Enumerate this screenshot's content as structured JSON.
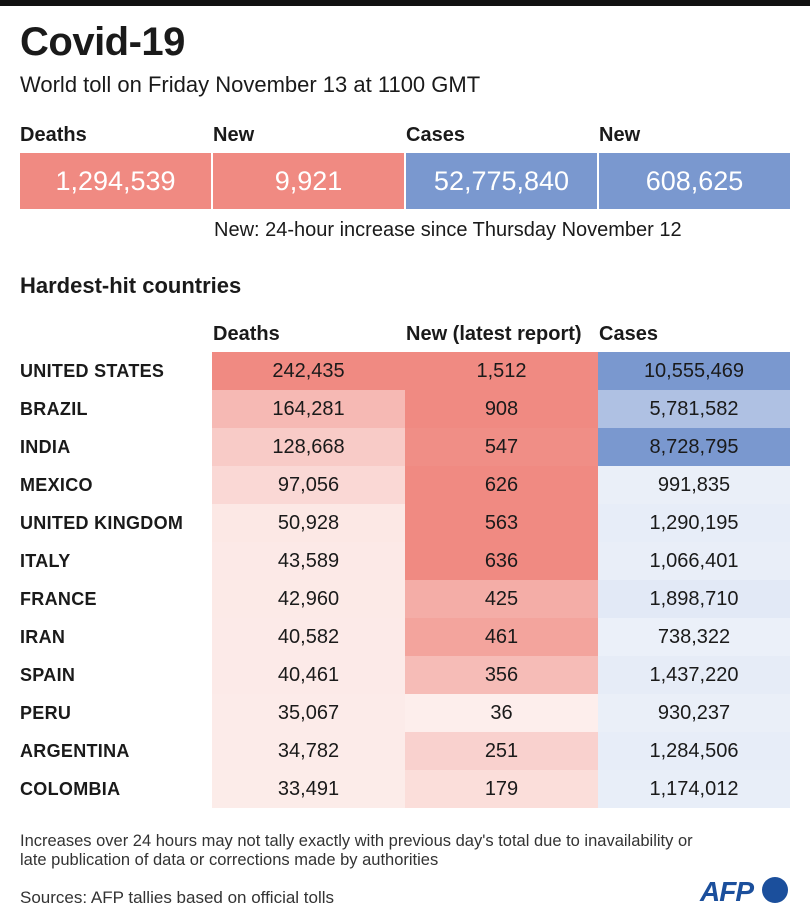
{
  "header": {
    "title": "Covid-19",
    "subtitle": "World toll on Friday November 13 at 1100 GMT"
  },
  "summary": {
    "labels": [
      "Deaths",
      "New",
      "Cases",
      "New"
    ],
    "values": [
      "1,294,539",
      "9,921",
      "52,775,840",
      "608,625"
    ],
    "colors": [
      "#f08a82",
      "#f08a82",
      "#7a98cf",
      "#7a98cf"
    ],
    "note": "New: 24-hour increase since Thursday November 12"
  },
  "chart_data": {
    "type": "table",
    "title": "Hardest-hit countries",
    "columns": [
      "Deaths",
      "New (latest report)",
      "Cases"
    ],
    "rows": [
      {
        "country": "UNITED STATES",
        "deaths": 242435,
        "new": 1512,
        "cases": 10555469,
        "deaths_label": "242,435",
        "new_label": "1,512",
        "cases_label": "10,555,469"
      },
      {
        "country": "BRAZIL",
        "deaths": 164281,
        "new": 908,
        "cases": 5781582,
        "deaths_label": "164,281",
        "new_label": "908",
        "cases_label": "5,781,582"
      },
      {
        "country": "INDIA",
        "deaths": 128668,
        "new": 547,
        "cases": 8728795,
        "deaths_label": "128,668",
        "new_label": "547",
        "cases_label": "8,728,795"
      },
      {
        "country": "MEXICO",
        "deaths": 97056,
        "new": 626,
        "cases": 991835,
        "deaths_label": "97,056",
        "new_label": "626",
        "cases_label": "991,835"
      },
      {
        "country": "UNITED KINGDOM",
        "deaths": 50928,
        "new": 563,
        "cases": 1290195,
        "deaths_label": "50,928",
        "new_label": "563",
        "cases_label": "1,290,195"
      },
      {
        "country": "ITALY",
        "deaths": 43589,
        "new": 636,
        "cases": 1066401,
        "deaths_label": "43,589",
        "new_label": "636",
        "cases_label": "1,066,401"
      },
      {
        "country": "FRANCE",
        "deaths": 42960,
        "new": 425,
        "cases": 1898710,
        "deaths_label": "42,960",
        "new_label": "425",
        "cases_label": "1,898,710"
      },
      {
        "country": "IRAN",
        "deaths": 40582,
        "new": 461,
        "cases": 738322,
        "deaths_label": "40,582",
        "new_label": "461",
        "cases_label": "738,322"
      },
      {
        "country": "SPAIN",
        "deaths": 40461,
        "new": 356,
        "cases": 1437220,
        "deaths_label": "40,461",
        "new_label": "356",
        "cases_label": "1,437,220"
      },
      {
        "country": "PERU",
        "deaths": 35067,
        "new": 36,
        "cases": 930237,
        "deaths_label": "35,067",
        "new_label": "36",
        "cases_label": "930,237"
      },
      {
        "country": "ARGENTINA",
        "deaths": 34782,
        "new": 251,
        "cases": 1284506,
        "deaths_label": "34,782",
        "new_label": "251",
        "cases_label": "1,284,506"
      },
      {
        "country": "COLOMBIA",
        "deaths": 33491,
        "new": 179,
        "cases": 1174012,
        "deaths_label": "33,491",
        "new_label": "179",
        "cases_label": "1,174,012"
      }
    ],
    "colors": {
      "deaths_high": "#f08a82",
      "new_high": "#f08a82",
      "cases_high": "#7a98cf",
      "light_red": "#fdf0ee",
      "light_blue": "#eef2fa"
    }
  },
  "footer": {
    "footnote": "Increases over 24 hours may not tally exactly with previous day's total due to inavailability or late publication of data or corrections made by authorities",
    "sources": "Sources: AFP tallies based on official tolls",
    "logo": "AFP"
  }
}
